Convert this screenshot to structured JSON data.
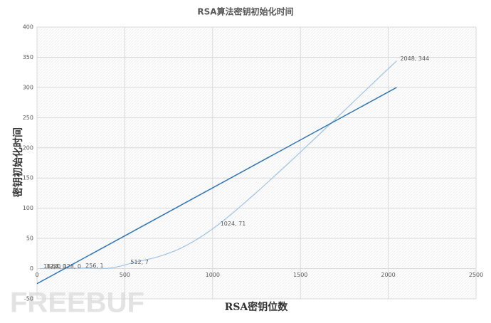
{
  "chart_data": {
    "type": "scatter",
    "title": "RSA算法密钥初始化时间",
    "x_label": "RSA密钥位数",
    "y_label": "密钥初始化时间",
    "x": [
      16,
      32,
      64,
      128,
      256,
      512,
      1024,
      2048
    ],
    "values": [
      0,
      0,
      0,
      0,
      1,
      7,
      71,
      344
    ],
    "value_labels": [
      "16, 0",
      "32, 0",
      "64, 0",
      "128, 0",
      "256, 1",
      "512, 7",
      "1024, 71",
      "2048, 344"
    ],
    "color": "#9dc3e6",
    "trendline": {
      "x": [
        0,
        2048
      ],
      "values": [
        -25,
        300
      ],
      "color": "#2e75b6"
    },
    "xlim": [
      0,
      2500
    ],
    "xticks": [
      0,
      500,
      1000,
      1500,
      2000,
      2500
    ],
    "ylim": [
      -50,
      400
    ],
    "yticks": [
      -50,
      0,
      50,
      100,
      150,
      200,
      250,
      300,
      350,
      400
    ],
    "grid": true,
    "watermark": "FREEBUF"
  }
}
